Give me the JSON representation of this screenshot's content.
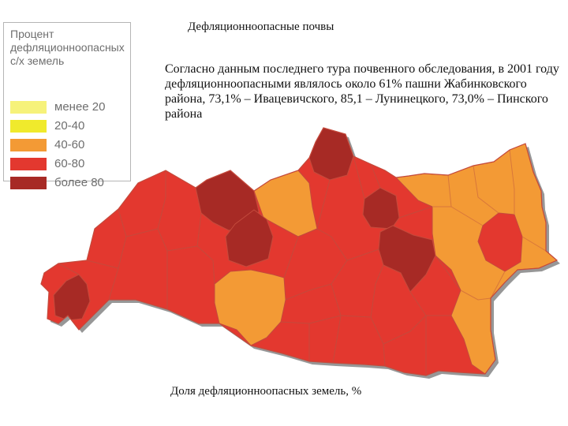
{
  "title": "Дефляционноопасные почвы",
  "paragraph": "Согласно данным последнего тура почвенного обследования, в 2001 году дефляционноопасными являлось около 61% пашни Жабинковского района, 73,1% – Ивацевичского, 85,1 – Лунинецкого, 73,0% – Пинского района",
  "caption": "Доля дефляционноопасных земель, %",
  "legend": {
    "title": "Процент дефляционноопасных с/х земель",
    "items": [
      {
        "label": "менее 20",
        "color": "#f6f27a"
      },
      {
        "label": "20-40",
        "color": "#f0ea2c"
      },
      {
        "label": "40-60",
        "color": "#f39a35"
      },
      {
        "label": "60-80",
        "color": "#e3382f"
      },
      {
        "label": "более 80",
        "color": "#a72a25"
      }
    ]
  },
  "map": {
    "border_color": "#c44a3c",
    "shadow_color": "#8c8c8c"
  }
}
